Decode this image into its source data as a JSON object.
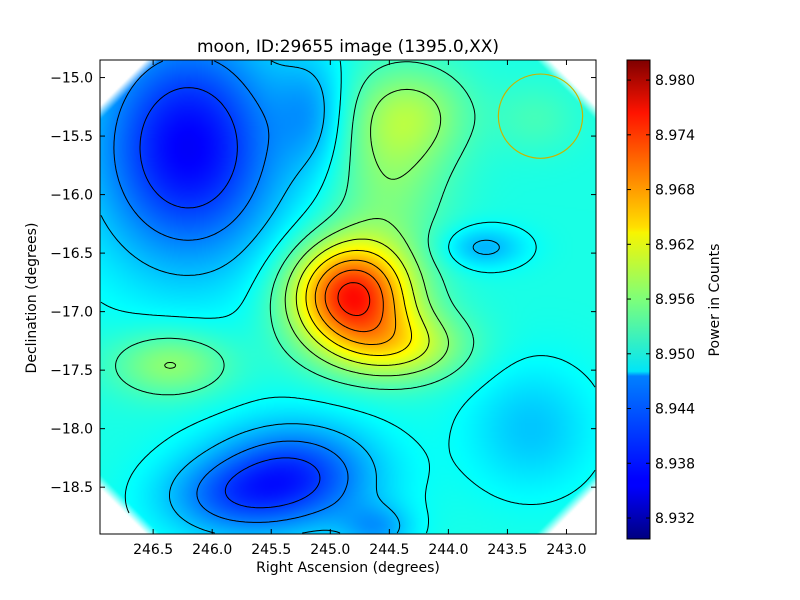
{
  "chart_data": {
    "type": "heatmap",
    "title": "moon, ID:29655 image (1395.0,XX)",
    "xlabel": "Right Ascension (degrees)",
    "ylabel": "Declination (degrees)",
    "colorbar_label": "Power in Counts",
    "xlim": [
      246.95,
      242.75
    ],
    "ylim": [
      -18.9,
      -14.85
    ],
    "x_ticks": [
      246.5,
      246.0,
      245.5,
      245.0,
      244.5,
      244.0,
      243.5,
      243.0
    ],
    "x_tick_labels": [
      "246.5",
      "246.0",
      "245.5",
      "245.0",
      "244.5",
      "244.0",
      "243.5",
      "243.0"
    ],
    "y_ticks": [
      -15.0,
      -15.5,
      -16.0,
      -16.5,
      -17.0,
      -17.5,
      -18.0,
      -18.5
    ],
    "y_tick_labels": [
      "−15.0",
      "−15.5",
      "−16.0",
      "−16.5",
      "−17.0",
      "−17.5",
      "−18.0",
      "−18.5"
    ],
    "colorbar_range": [
      8.9297,
      8.9822
    ],
    "colorbar_ticks": [
      8.932,
      8.938,
      8.944,
      8.95,
      8.956,
      8.962,
      8.968,
      8.974,
      8.98
    ],
    "colorbar_tick_labels": [
      "8.932",
      "8.938",
      "8.944",
      "8.950",
      "8.956",
      "8.962",
      "8.968",
      "8.974",
      "8.980"
    ],
    "colormap": "jet",
    "contours": true,
    "peak": {
      "ra": 244.82,
      "dec": -16.85,
      "value": 8.982
    },
    "marker_circle": {
      "ra": 243.22,
      "dec": -15.33,
      "radius_deg": 0.36,
      "color": "#c8b400"
    }
  }
}
